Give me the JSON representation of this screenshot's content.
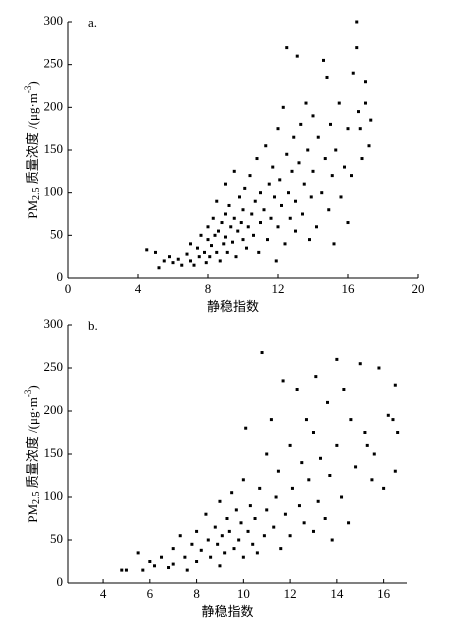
{
  "chart_data": [
    {
      "type": "scatter",
      "panel_label": "a.",
      "x_label": "静稳指数",
      "y_label_parts": [
        "PM",
        "2.5",
        " 质量浓度 /(μg·m",
        "-3",
        ")"
      ],
      "color": "#000000",
      "xlim": [
        0,
        20
      ],
      "xticks": [
        0,
        4,
        8,
        12,
        16,
        20
      ],
      "ylim": [
        0,
        300
      ],
      "yticks": [
        0,
        50,
        100,
        150,
        200,
        250,
        300
      ],
      "x": [
        4.5,
        5,
        5.2,
        5.5,
        5.8,
        6,
        6.3,
        6.5,
        6.8,
        7,
        7,
        7.2,
        7.4,
        7.5,
        7.6,
        7.8,
        7.9,
        8,
        8,
        8.1,
        8.2,
        8.3,
        8.4,
        8.5,
        8.5,
        8.6,
        8.7,
        8.8,
        8.9,
        9,
        9,
        9,
        9.1,
        9.2,
        9.3,
        9.4,
        9.5,
        9.5,
        9.6,
        9.7,
        9.8,
        9.9,
        10,
        10,
        10.1,
        10.2,
        10.3,
        10.4,
        10.5,
        10.6,
        10.7,
        10.8,
        10.9,
        11,
        11,
        11.2,
        11.3,
        11.4,
        11.5,
        11.6,
        11.7,
        11.8,
        11.9,
        12,
        12,
        12.1,
        12.2,
        12.3,
        12.4,
        12.5,
        12.5,
        12.6,
        12.7,
        12.8,
        12.9,
        13,
        13,
        13.1,
        13.2,
        13.3,
        13.4,
        13.5,
        13.6,
        13.7,
        13.8,
        13.9,
        14,
        14,
        14.2,
        14.3,
        14.5,
        14.6,
        14.7,
        14.8,
        14.9,
        15,
        15.1,
        15.2,
        15.3,
        15.5,
        15.6,
        15.8,
        16,
        16,
        16.2,
        16.3,
        16.5,
        16.5,
        16.6,
        16.7,
        16.8,
        17,
        17,
        17.2,
        17.3
      ],
      "values": [
        33,
        30,
        12,
        20,
        25,
        18,
        22,
        15,
        28,
        20,
        40,
        15,
        35,
        25,
        50,
        30,
        18,
        45,
        60,
        25,
        38,
        70,
        50,
        30,
        90,
        55,
        20,
        65,
        40,
        110,
        75,
        48,
        30,
        85,
        60,
        42,
        125,
        70,
        25,
        55,
        95,
        65,
        45,
        80,
        105,
        35,
        60,
        120,
        75,
        50,
        90,
        140,
        30,
        65,
        100,
        80,
        155,
        45,
        110,
        70,
        130,
        95,
        20,
        175,
        60,
        115,
        85,
        200,
        40,
        145,
        270,
        100,
        70,
        125,
        165,
        55,
        90,
        260,
        135,
        180,
        75,
        110,
        205,
        150,
        45,
        95,
        125,
        190,
        60,
        165,
        100,
        255,
        140,
        235,
        80,
        180,
        120,
        40,
        150,
        205,
        95,
        130,
        175,
        65,
        120,
        240,
        300,
        270,
        195,
        175,
        140,
        230,
        205,
        155,
        185
      ]
    },
    {
      "type": "scatter",
      "panel_label": "b.",
      "x_label": "静稳指数",
      "y_label_parts": [
        "PM",
        "2.5",
        " 质量浓度 /(μg·m",
        "-3",
        ")"
      ],
      "color": "#000000",
      "xlim": [
        2.5,
        17
      ],
      "xticks": [
        4,
        6,
        8,
        10,
        12,
        14,
        16
      ],
      "ylim": [
        0,
        300
      ],
      "yticks": [
        0,
        50,
        100,
        150,
        200,
        250,
        300
      ],
      "x": [
        4.8,
        5,
        5.5,
        5.7,
        6,
        6.2,
        6.5,
        6.8,
        7,
        7,
        7.3,
        7.5,
        7.6,
        7.8,
        8,
        8,
        8.2,
        8.4,
        8.5,
        8.6,
        8.8,
        8.9,
        9,
        9,
        9.1,
        9.2,
        9.3,
        9.4,
        9.5,
        9.6,
        9.7,
        9.8,
        9.9,
        10,
        10,
        10.1,
        10.2,
        10.3,
        10.4,
        10.5,
        10.6,
        10.7,
        10.8,
        10.9,
        11,
        11,
        11.2,
        11.3,
        11.4,
        11.5,
        11.6,
        11.7,
        11.8,
        12,
        12,
        12.1,
        12.3,
        12.4,
        12.5,
        12.6,
        12.7,
        12.8,
        13,
        13,
        13.1,
        13.2,
        13.3,
        13.5,
        13.6,
        13.7,
        13.8,
        14,
        14,
        14.2,
        14.3,
        14.5,
        14.6,
        14.8,
        15,
        15.2,
        15.3,
        15.5,
        15.6,
        15.8,
        16,
        16.2,
        16.4,
        16.5,
        16.5,
        16.6
      ],
      "values": [
        15,
        15,
        35,
        15,
        25,
        20,
        30,
        18,
        40,
        22,
        55,
        30,
        15,
        45,
        25,
        60,
        38,
        80,
        50,
        30,
        65,
        45,
        20,
        95,
        55,
        35,
        75,
        60,
        105,
        40,
        85,
        50,
        70,
        30,
        120,
        180,
        60,
        90,
        45,
        75,
        35,
        110,
        268,
        55,
        150,
        85,
        190,
        65,
        100,
        130,
        40,
        235,
        80,
        160,
        55,
        110,
        225,
        90,
        140,
        70,
        190,
        120,
        60,
        175,
        240,
        95,
        145,
        75,
        210,
        125,
        50,
        160,
        260,
        100,
        225,
        70,
        190,
        135,
        255,
        175,
        160,
        120,
        150,
        250,
        110,
        195,
        190,
        230,
        130,
        175
      ]
    }
  ]
}
